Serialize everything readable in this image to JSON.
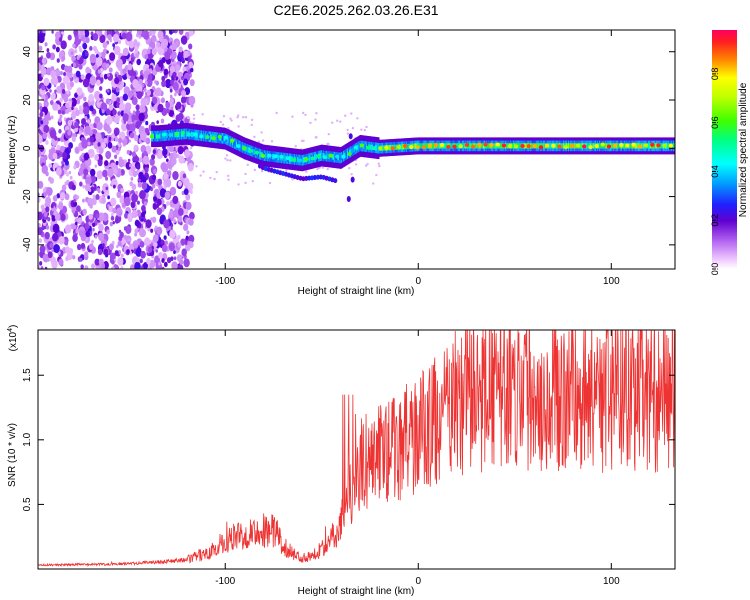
{
  "title": "C2E6.2025.262.03.26.E31",
  "chart_data": [
    {
      "type": "heatmap",
      "xlabel": "Height of straight line (km)",
      "ylabel": "Frequency (Hz)",
      "xlim": [
        -197,
        133
      ],
      "ylim": [
        -50,
        49
      ],
      "x_ticks": [
        -100,
        0,
        100
      ],
      "y_ticks": [
        -40,
        -20,
        0,
        20,
        40
      ],
      "grid": false,
      "colorbar": {
        "label": "Normalized spectral amplitude",
        "range": [
          0,
          0.98
        ],
        "ticks": [
          0.0,
          0.2,
          0.4,
          0.6,
          0.8
        ]
      },
      "ridge_track": [
        {
          "x": -135,
          "y": 5
        },
        {
          "x": -120,
          "y": 6
        },
        {
          "x": -100,
          "y": 4
        },
        {
          "x": -90,
          "y": 0
        },
        {
          "x": -80,
          "y": -3
        },
        {
          "x": -70,
          "y": -4
        },
        {
          "x": -60,
          "y": -5
        },
        {
          "x": -50,
          "y": -3
        },
        {
          "x": -40,
          "y": -4
        },
        {
          "x": -30,
          "y": 1
        },
        {
          "x": -20,
          "y": 0
        },
        {
          "x": 0,
          "y": 1
        },
        {
          "x": 50,
          "y": 1
        },
        {
          "x": 100,
          "y": 1
        },
        {
          "x": 133,
          "y": 1
        }
      ]
    },
    {
      "type": "line",
      "xlabel": "Height of straight line (km)",
      "ylabel": "SNR (10 * v/v)",
      "scale_label": "(x10",
      "scale_exponent": "4",
      "xlim": [
        -197,
        133
      ],
      "ylim": [
        0,
        18500
      ],
      "x_ticks": [
        -100,
        0,
        100
      ],
      "y_ticks": [
        5000,
        10000,
        15000
      ],
      "y_tick_labels": [
        "0.5",
        "1.0",
        "1.5"
      ],
      "color": "#ee3333",
      "envelope": [
        {
          "x": -197,
          "y": 300
        },
        {
          "x": -150,
          "y": 400
        },
        {
          "x": -120,
          "y": 700
        },
        {
          "x": -105,
          "y": 1500
        },
        {
          "x": -95,
          "y": 2500
        },
        {
          "x": -85,
          "y": 3000
        },
        {
          "x": -75,
          "y": 3000
        },
        {
          "x": -68,
          "y": 1500
        },
        {
          "x": -60,
          "y": 800
        },
        {
          "x": -50,
          "y": 1500
        },
        {
          "x": -42,
          "y": 3000
        },
        {
          "x": -35,
          "y": 6000
        },
        {
          "x": -30,
          "y": 8000
        },
        {
          "x": -20,
          "y": 9000
        },
        {
          "x": -10,
          "y": 9500
        },
        {
          "x": 0,
          "y": 10500
        },
        {
          "x": 10,
          "y": 11500
        },
        {
          "x": 20,
          "y": 13000
        },
        {
          "x": 30,
          "y": 13500
        },
        {
          "x": 50,
          "y": 14000
        },
        {
          "x": 70,
          "y": 13500
        },
        {
          "x": 90,
          "y": 13500
        },
        {
          "x": 110,
          "y": 13500
        },
        {
          "x": 133,
          "y": 13500
        }
      ]
    }
  ]
}
